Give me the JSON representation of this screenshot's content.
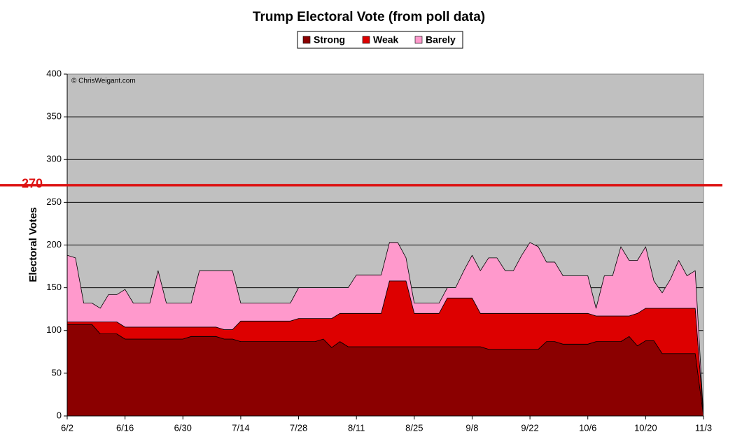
{
  "chart_data": {
    "type": "stacked_area",
    "title": "Trump Electoral Vote (from poll data)",
    "y_label": "Electoral Votes",
    "annotation": "© ChrisWeigant.com",
    "threshold": {
      "value": 270,
      "label": "270",
      "color": "#dd1111"
    },
    "categories": [
      "6/2",
      null,
      null,
      null,
      null,
      null,
      null,
      "6/16",
      null,
      null,
      null,
      null,
      null,
      null,
      "6/30",
      null,
      null,
      null,
      null,
      null,
      null,
      "7/14",
      null,
      null,
      null,
      null,
      null,
      null,
      "7/28",
      null,
      null,
      null,
      null,
      null,
      null,
      "8/11",
      null,
      null,
      null,
      null,
      null,
      null,
      "8/25",
      null,
      null,
      null,
      null,
      null,
      null,
      "9/8",
      null,
      null,
      null,
      null,
      null,
      null,
      "9/22",
      null,
      null,
      null,
      null,
      null,
      null,
      "10/6",
      null,
      null,
      null,
      null,
      null,
      null,
      "10/20",
      null,
      null,
      null,
      null,
      null,
      null,
      "11/3"
    ],
    "series": [
      {
        "name": "Strong",
        "color": "#8b0000",
        "values": [
          107,
          107,
          107,
          107,
          96,
          96,
          96,
          90,
          90,
          90,
          90,
          90,
          90,
          90,
          90,
          93,
          93,
          93,
          93,
          90,
          90,
          87,
          87,
          87,
          87,
          87,
          87,
          87,
          87,
          87,
          87,
          90,
          80,
          87,
          81,
          81,
          81,
          81,
          81,
          81,
          81,
          81,
          81,
          81,
          81,
          81,
          81,
          81,
          81,
          81,
          81,
          78,
          78,
          78,
          78,
          78,
          78,
          78,
          87,
          87,
          84,
          84,
          84,
          84,
          87,
          87,
          87,
          87,
          93,
          82,
          88,
          88,
          73,
          73,
          73,
          73,
          73,
          0
        ]
      },
      {
        "name": "Weak",
        "color": "#dd0000",
        "values": [
          3,
          3,
          3,
          3,
          14,
          14,
          14,
          14,
          14,
          14,
          14,
          14,
          14,
          14,
          14,
          11,
          11,
          11,
          11,
          11,
          11,
          24,
          24,
          24,
          24,
          24,
          24,
          24,
          27,
          27,
          27,
          24,
          34,
          33,
          39,
          39,
          39,
          39,
          39,
          77,
          77,
          77,
          39,
          39,
          39,
          39,
          57,
          57,
          57,
          57,
          39,
          42,
          42,
          42,
          42,
          42,
          42,
          42,
          33,
          33,
          36,
          36,
          36,
          36,
          30,
          30,
          30,
          30,
          24,
          38,
          38,
          38,
          53,
          53,
          53,
          53,
          53,
          0
        ]
      },
      {
        "name": "Barely",
        "color": "#ff99cc",
        "values": [
          78,
          75,
          22,
          22,
          16,
          32,
          32,
          44,
          28,
          28,
          28,
          66,
          28,
          28,
          28,
          28,
          66,
          66,
          66,
          69,
          69,
          21,
          21,
          21,
          21,
          21,
          21,
          21,
          36,
          36,
          36,
          36,
          36,
          30,
          30,
          45,
          45,
          45,
          45,
          45,
          45,
          27,
          12,
          12,
          12,
          12,
          12,
          12,
          32,
          50,
          50,
          65,
          65,
          50,
          50,
          68,
          83,
          78,
          60,
          60,
          44,
          44,
          44,
          44,
          9,
          47,
          47,
          81,
          65,
          62,
          72,
          32,
          18,
          34,
          56,
          38,
          44,
          0
        ]
      }
    ],
    "ylim": [
      0,
      400
    ],
    "yticks": [
      0,
      50,
      100,
      150,
      200,
      250,
      300,
      350,
      400
    ],
    "grid": true,
    "plot_background": "#c0c0c0"
  }
}
